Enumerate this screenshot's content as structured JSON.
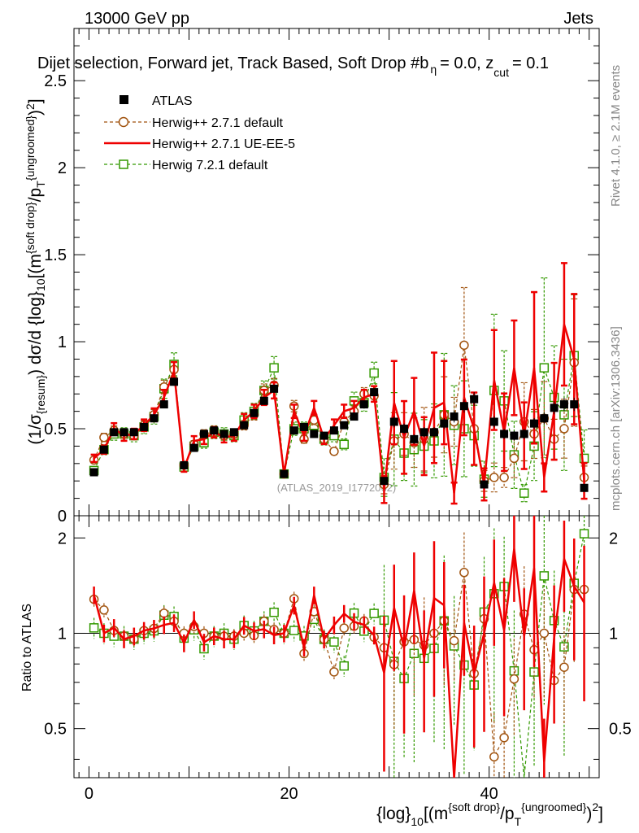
{
  "header": {
    "energy_label": "13000 GeV pp",
    "category_label": "Jets",
    "title": "Dijet selection, Forward jet, Track Based, Soft Drop #b",
    "title_tail": "= 0.0, z",
    "title_sub": "cut",
    "title_end": "= 0.1"
  },
  "side_labels": {
    "rivet": "Rivet 4.1.0, ≥ 2.1M events",
    "mcplots": "mcplots.cern.ch [arXiv:1306.3436]"
  },
  "watermark": "(ATLAS_2019_I1772062)",
  "legend": {
    "atlas": "ATLAS",
    "herwig_default": "Herwig++ 2.7.1 default",
    "herwig_ueee5": "Herwig++ 2.7.1 UE-EE-5",
    "herwig721": "Herwig 7.2.1 default"
  },
  "colors": {
    "atlas": "#000000",
    "herwig_default": "#a0520d",
    "herwig_ueee5": "#ee0000",
    "herwig721": "#339900"
  },
  "chart_data": {
    "type": "scatter",
    "main_ylabel": "(1/σ{resum}) dσ/d {log}10[(m{soft drop}/pT{ungroomed})2]",
    "xlabel": "{log}10[(m{soft drop}/pT{ungroomed})2]",
    "xlim": [
      -1.5,
      51
    ],
    "ylim": [
      0,
      2.8
    ],
    "xticks": [
      0,
      20,
      40
    ],
    "yticks": [
      0.5,
      1,
      1.5,
      2,
      2.5
    ],
    "yticks_extra_label": "0",
    "ratio_ylabel": "Ratio to ATLAS",
    "ratio_ylim": [
      0.35,
      2.35
    ],
    "ratio_yticks": [
      0.5,
      1,
      2
    ],
    "x": [
      0.5,
      1.5,
      2.5,
      3.5,
      4.5,
      5.5,
      6.5,
      7.5,
      8.5,
      9.5,
      10.5,
      11.5,
      12.5,
      13.5,
      14.5,
      15.5,
      16.5,
      17.5,
      18.5,
      19.5,
      20.5,
      21.5,
      22.5,
      23.5,
      24.5,
      25.5,
      26.5,
      27.5,
      28.5,
      29.5,
      30.5,
      31.5,
      32.5,
      33.5,
      34.5,
      35.5,
      36.5,
      37.5,
      38.5,
      39.5,
      40.5,
      41.5,
      42.5,
      43.5,
      44.5,
      45.5,
      46.5,
      47.5,
      48.5,
      49.5
    ],
    "series": [
      {
        "name": "ATLAS",
        "values": [
          0.25,
          0.38,
          0.48,
          0.48,
          0.48,
          0.51,
          0.56,
          0.64,
          0.77,
          0.29,
          0.39,
          0.47,
          0.49,
          0.47,
          0.48,
          0.52,
          0.59,
          0.66,
          0.73,
          0.24,
          0.49,
          0.51,
          0.47,
          0.46,
          0.49,
          0.52,
          0.57,
          0.64,
          0.71,
          0.2,
          0.54,
          0.5,
          0.44,
          0.48,
          0.48,
          0.53,
          0.57,
          0.63,
          0.67,
          0.18,
          0.54,
          0.47,
          0.46,
          0.47,
          0.53,
          0.56,
          0.62,
          0.64,
          0.64,
          0.16
        ]
      },
      {
        "name": "Herwig++ 2.7.1 default",
        "values": [
          0.32,
          0.45,
          0.49,
          0.47,
          0.46,
          0.52,
          0.58,
          0.74,
          0.84,
          0.29,
          0.41,
          0.47,
          0.48,
          0.46,
          0.47,
          0.52,
          0.58,
          0.72,
          0.75,
          0.24,
          0.63,
          0.44,
          0.55,
          0.44,
          0.37,
          0.54,
          0.6,
          0.7,
          0.69,
          0.18,
          0.43,
          0.47,
          0.42,
          0.44,
          0.48,
          0.58,
          0.54,
          0.98,
          0.5,
          0.2,
          0.22,
          0.22,
          0.33,
          0.54,
          0.47,
          0.56,
          0.44,
          0.5,
          0.88,
          0.22
        ]
      },
      {
        "name": "Herwig++ 2.7.1 UE-EE-5",
        "values": [
          0.33,
          0.38,
          0.5,
          0.46,
          0.47,
          0.52,
          0.58,
          0.68,
          0.83,
          0.27,
          0.43,
          0.44,
          0.48,
          0.45,
          0.46,
          0.55,
          0.6,
          0.68,
          0.72,
          0.24,
          0.6,
          0.46,
          0.62,
          0.44,
          0.52,
          0.6,
          0.62,
          0.68,
          0.7,
          0.15,
          0.65,
          0.45,
          0.6,
          0.4,
          0.62,
          0.65,
          0.13,
          0.68,
          0.5,
          0.18,
          0.78,
          0.48,
          0.85,
          0.46,
          0.85,
          0.22,
          0.6,
          1.1,
          0.9,
          0.2
        ]
      },
      {
        "name": "Herwig 7.2.1 default",
        "values": [
          0.26,
          0.38,
          0.47,
          0.47,
          0.46,
          0.51,
          0.57,
          0.73,
          0.87,
          0.28,
          0.4,
          0.42,
          0.48,
          0.47,
          0.46,
          0.55,
          0.6,
          0.72,
          0.85,
          0.24,
          0.5,
          0.5,
          0.52,
          0.44,
          0.46,
          0.41,
          0.66,
          0.65,
          0.82,
          0.22,
          0.44,
          0.36,
          0.38,
          0.4,
          0.43,
          0.58,
          0.52,
          0.5,
          0.46,
          0.21,
          0.72,
          0.66,
          0.35,
          0.13,
          0.4,
          0.85,
          0.68,
          0.58,
          0.92,
          0.33
        ]
      }
    ],
    "legend_position": "top-left"
  }
}
